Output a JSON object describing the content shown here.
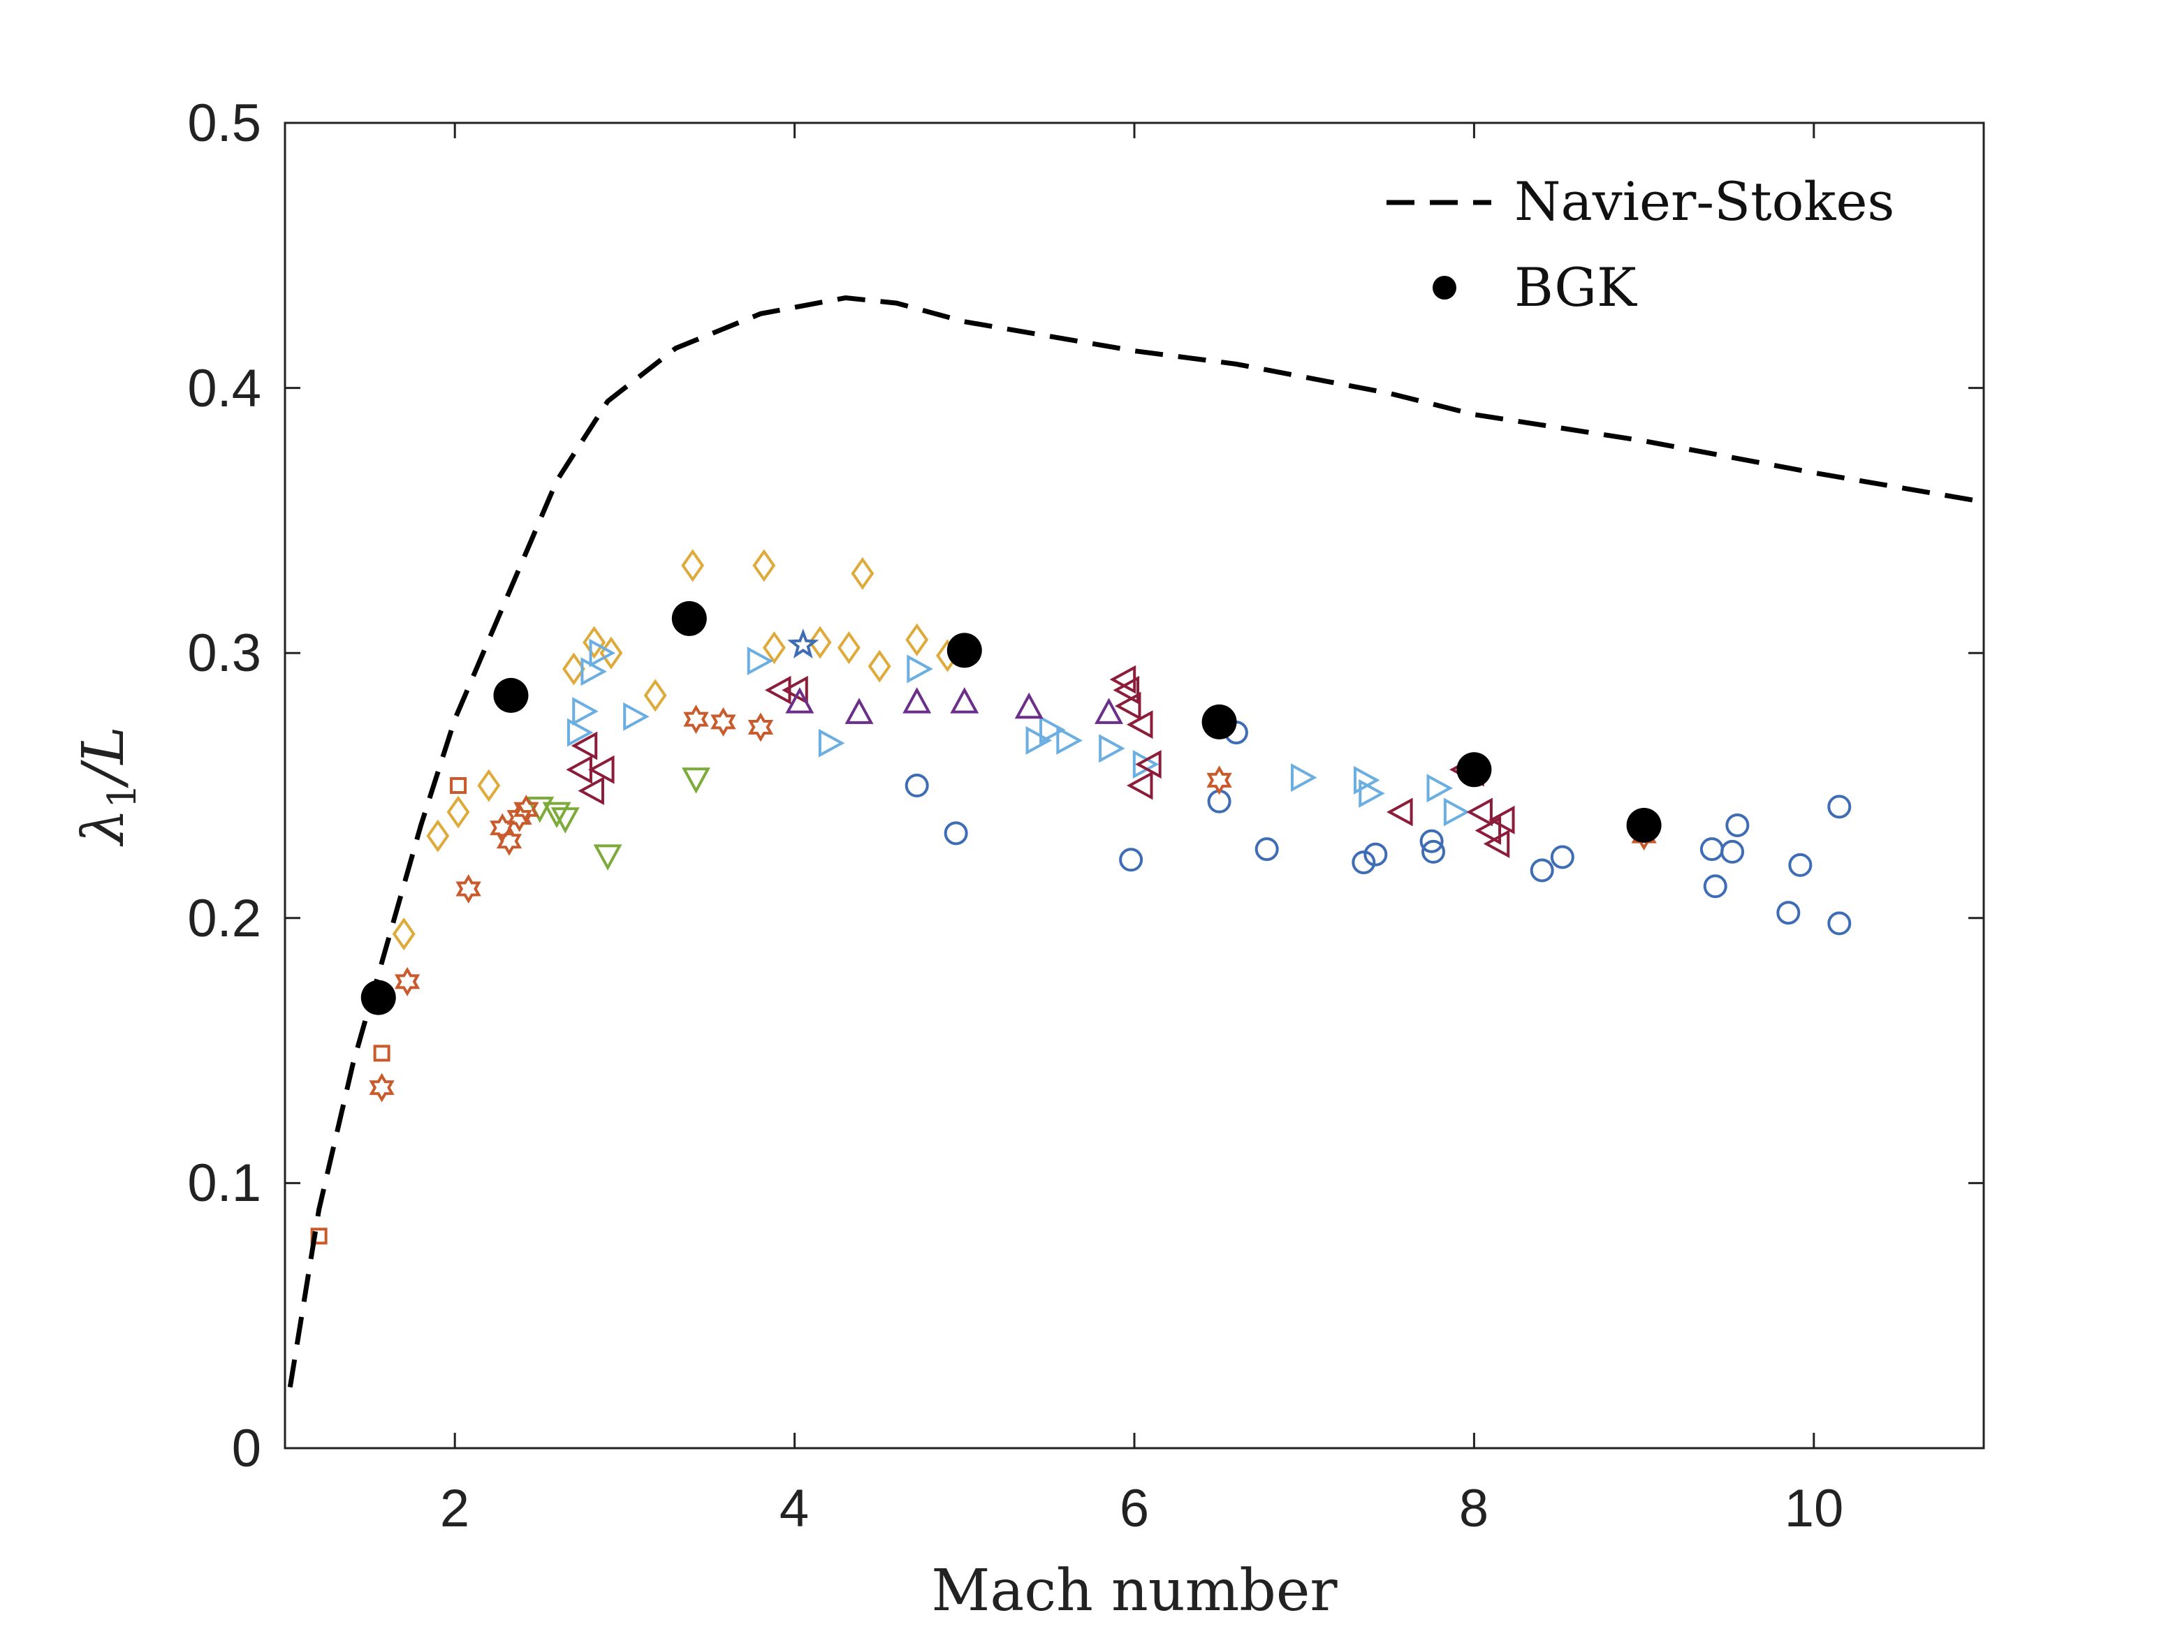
{
  "chart_data": {
    "type": "scatter",
    "xlabel": "Mach number",
    "ylabel_symbol": "λ",
    "ylabel_subscript": "1",
    "ylabel_rest": "/L",
    "xlim": [
      1,
      11
    ],
    "ylim": [
      0,
      0.5
    ],
    "xticks": [
      2,
      4,
      6,
      8,
      10
    ],
    "yticks": [
      0,
      0.1,
      0.2,
      0.3,
      0.4,
      0.5
    ],
    "xtick_labels": [
      "2",
      "4",
      "6",
      "8",
      "10"
    ],
    "ytick_labels": [
      "0",
      "0.1",
      "0.2",
      "0.3",
      "0.4",
      "0.5"
    ],
    "grid": false,
    "legend_position": "top-right",
    "legend": [
      {
        "label": "Navier-Stokes",
        "style": "dashed-line"
      },
      {
        "label": "BGK",
        "style": "filled-circle"
      }
    ],
    "lines": [
      {
        "name": "Navier-Stokes",
        "color": "#000000",
        "dash": true,
        "x": [
          1.03,
          1.2,
          1.4,
          1.6,
          1.8,
          2.0,
          2.2,
          2.4,
          2.6,
          2.9,
          3.3,
          3.8,
          4.3,
          4.6,
          5.0,
          6.0,
          6.6,
          7.5,
          8.0,
          9.0,
          10.0,
          11.0
        ],
        "y": [
          0.023,
          0.09,
          0.145,
          0.19,
          0.235,
          0.275,
          0.305,
          0.335,
          0.365,
          0.395,
          0.415,
          0.428,
          0.434,
          0.432,
          0.425,
          0.414,
          0.409,
          0.398,
          0.39,
          0.38,
          0.368,
          0.357
        ]
      }
    ],
    "series": [
      {
        "name": "BGK",
        "marker": "filled-circle",
        "color": "#000000",
        "points": [
          [
            1.55,
            0.17
          ],
          [
            2.33,
            0.284
          ],
          [
            3.38,
            0.313
          ],
          [
            5.0,
            0.301
          ],
          [
            6.5,
            0.274
          ],
          [
            8.0,
            0.256
          ],
          [
            9.0,
            0.235
          ]
        ]
      },
      {
        "marker": "circle",
        "color": "#3e6db5",
        "points": [
          [
            4.72,
            0.25
          ],
          [
            4.95,
            0.232
          ],
          [
            5.98,
            0.222
          ],
          [
            6.5,
            0.244
          ],
          [
            6.6,
            0.27
          ],
          [
            6.78,
            0.226
          ],
          [
            7.35,
            0.221
          ],
          [
            7.42,
            0.224
          ],
          [
            7.75,
            0.229
          ],
          [
            7.76,
            0.225
          ],
          [
            8.4,
            0.218
          ],
          [
            8.52,
            0.223
          ],
          [
            9.4,
            0.226
          ],
          [
            9.42,
            0.212
          ],
          [
            9.52,
            0.225
          ],
          [
            9.55,
            0.235
          ],
          [
            9.85,
            0.202
          ],
          [
            9.92,
            0.22
          ],
          [
            10.15,
            0.242
          ],
          [
            10.15,
            0.198
          ]
        ]
      },
      {
        "marker": "diamond",
        "color": "#deaa3a",
        "points": [
          [
            1.7,
            0.194
          ],
          [
            1.9,
            0.231
          ],
          [
            2.02,
            0.24
          ],
          [
            2.2,
            0.25
          ],
          [
            2.7,
            0.294
          ],
          [
            2.82,
            0.304
          ],
          [
            2.92,
            0.3
          ],
          [
            3.18,
            0.284
          ],
          [
            3.4,
            0.333
          ],
          [
            3.82,
            0.333
          ],
          [
            3.88,
            0.302
          ],
          [
            4.15,
            0.304
          ],
          [
            4.32,
            0.302
          ],
          [
            4.4,
            0.33
          ],
          [
            4.5,
            0.295
          ],
          [
            4.72,
            0.305
          ],
          [
            4.9,
            0.299
          ]
        ]
      },
      {
        "marker": "triangle-right",
        "color": "#6aaee2",
        "points": [
          [
            2.72,
            0.27
          ],
          [
            2.75,
            0.278
          ],
          [
            2.8,
            0.293
          ],
          [
            2.85,
            0.3
          ],
          [
            3.05,
            0.276
          ],
          [
            3.78,
            0.297
          ],
          [
            4.2,
            0.266
          ],
          [
            4.72,
            0.294
          ],
          [
            5.42,
            0.267
          ],
          [
            5.5,
            0.271
          ],
          [
            5.6,
            0.267
          ],
          [
            5.85,
            0.264
          ],
          [
            6.05,
            0.258
          ],
          [
            6.98,
            0.253
          ],
          [
            7.35,
            0.252
          ],
          [
            7.38,
            0.247
          ],
          [
            7.78,
            0.249
          ],
          [
            7.88,
            0.24
          ]
        ]
      },
      {
        "marker": "triangle-left",
        "color": "#8c1d3a",
        "points": [
          [
            2.75,
            0.256
          ],
          [
            2.78,
            0.265
          ],
          [
            2.82,
            0.248
          ],
          [
            2.88,
            0.256
          ],
          [
            3.92,
            0.286
          ],
          [
            4.02,
            0.286
          ],
          [
            5.95,
            0.29
          ],
          [
            5.97,
            0.286
          ],
          [
            5.98,
            0.28
          ],
          [
            6.05,
            0.273
          ],
          [
            6.05,
            0.25
          ],
          [
            6.1,
            0.258
          ],
          [
            7.58,
            0.24
          ],
          [
            7.95,
            0.256
          ],
          [
            8.0,
            0.255
          ],
          [
            8.05,
            0.24
          ],
          [
            8.1,
            0.233
          ],
          [
            8.15,
            0.228
          ],
          [
            8.18,
            0.237
          ]
        ]
      },
      {
        "marker": "triangle-up",
        "color": "#6b2f8a",
        "points": [
          [
            4.03,
            0.281
          ],
          [
            4.38,
            0.277
          ],
          [
            4.72,
            0.281
          ],
          [
            5.0,
            0.281
          ],
          [
            5.38,
            0.279
          ],
          [
            5.85,
            0.277
          ]
        ]
      },
      {
        "marker": "triangle-down",
        "color": "#7cab3a",
        "points": [
          [
            2.5,
            0.242
          ],
          [
            2.6,
            0.24
          ],
          [
            2.65,
            0.238
          ],
          [
            2.9,
            0.224
          ],
          [
            3.42,
            0.253
          ]
        ]
      },
      {
        "marker": "hexagram",
        "color": "#c95a2c",
        "points": [
          [
            1.57,
            0.136
          ],
          [
            1.72,
            0.176
          ],
          [
            2.08,
            0.211
          ],
          [
            2.28,
            0.234
          ],
          [
            2.32,
            0.229
          ],
          [
            2.38,
            0.238
          ],
          [
            2.42,
            0.241
          ],
          [
            3.42,
            0.275
          ],
          [
            3.58,
            0.274
          ],
          [
            3.8,
            0.272
          ],
          [
            6.5,
            0.252
          ],
          [
            9.0,
            0.231
          ]
        ]
      },
      {
        "marker": "square",
        "color": "#c95a2c",
        "points": [
          [
            1.2,
            0.08
          ],
          [
            1.57,
            0.149
          ],
          [
            2.02,
            0.25
          ]
        ]
      },
      {
        "marker": "pentagram",
        "color": "#3e6db5",
        "points": [
          [
            4.05,
            0.303
          ]
        ]
      }
    ]
  }
}
